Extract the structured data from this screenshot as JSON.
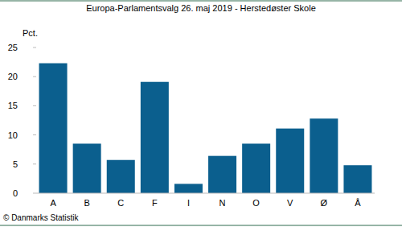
{
  "chart_data": {
    "type": "bar",
    "title": "Europa-Parlamentsvalg 26. maj 2019 - Herstedøster Skole",
    "y_label": "Pct.",
    "source": "© Danmarks Statistik",
    "categories": [
      "A",
      "B",
      "C",
      "F",
      "I",
      "N",
      "O",
      "V",
      "Ø",
      "Å"
    ],
    "values": [
      22.3,
      8.5,
      5.7,
      19.1,
      1.6,
      6.4,
      8.5,
      11.1,
      12.8,
      4.8
    ],
    "color": "#0b5f8e",
    "ylim": [
      0,
      25
    ],
    "yticks": [
      0,
      5,
      10,
      15,
      20,
      25
    ],
    "grid": false
  }
}
